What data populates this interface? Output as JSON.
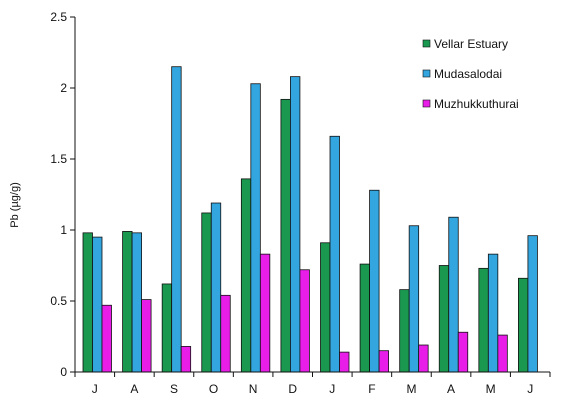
{
  "chart_data": {
    "type": "bar",
    "title": "",
    "xlabel": "",
    "ylabel": "Pb (µg/g)",
    "ylim": [
      0,
      2.5
    ],
    "yticks": [
      "0",
      "0.5",
      "1",
      "1.5",
      "2",
      "2.5"
    ],
    "grid": false,
    "legend_position": "top-right",
    "categories": [
      "J",
      "A",
      "S",
      "O",
      "N",
      "D",
      "J",
      "F",
      "M",
      "A",
      "M",
      "J"
    ],
    "series": [
      {
        "name": "Vellar Estuary",
        "color": "#1a9850",
        "values": [
          0.98,
          0.99,
          0.62,
          1.12,
          1.36,
          1.92,
          0.91,
          0.76,
          0.58,
          0.75,
          0.73,
          0.66
        ]
      },
      {
        "name": "Mudasalodai",
        "color": "#33a6e0",
        "values": [
          0.95,
          0.98,
          2.15,
          1.19,
          2.03,
          2.08,
          1.66,
          1.28,
          1.03,
          1.09,
          0.83,
          0.96
        ]
      },
      {
        "name": "Muzhukkuthurai",
        "color": "#e81ee8",
        "values": [
          0.47,
          0.51,
          0.18,
          0.54,
          0.83,
          0.72,
          0.14,
          0.15,
          0.19,
          0.28,
          0.26,
          null
        ]
      }
    ]
  }
}
